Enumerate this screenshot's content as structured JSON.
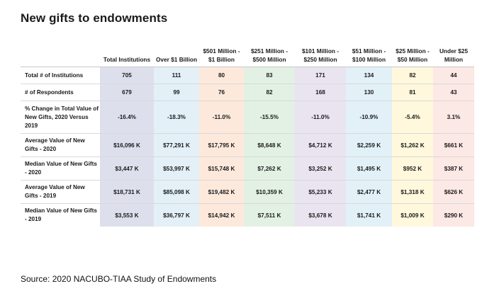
{
  "title": "New gifts to endowments",
  "source": "Source: 2020 NACUBO-TIAA Study of Endowments",
  "colors": {
    "col_total": "#dde0ec",
    "col_over1b": "#e3f0f7",
    "col_501": "#fde9dc",
    "col_251": "#e2f1e4",
    "col_101": "#eae4f0",
    "col_51": "#e2f1f8",
    "col_25": "#fff8dc",
    "col_under25": "#fce8e4"
  },
  "chart_data": {
    "type": "table",
    "columns": [
      "Total Institutions",
      "Over $1 Billion",
      "$501 Million - $1 Billion",
      "$251 Million - $500 Million",
      "$101 Million - $250 Million",
      "$51 Million - $100 Million",
      "$25 Million - $50 Million",
      "Under $25 Million"
    ],
    "rows": [
      {
        "label": "Total # of Institutions",
        "values": [
          "705",
          "111",
          "80",
          "83",
          "171",
          "134",
          "82",
          "44"
        ]
      },
      {
        "label": "# of Respondents",
        "values": [
          "679",
          "99",
          "76",
          "82",
          "168",
          "130",
          "81",
          "43"
        ]
      },
      {
        "label": "% Change in Total Value of New Gifts, 2020 Versus 2019",
        "values": [
          "-16.4%",
          "-18.3%",
          "-11.0%",
          "-15.5%",
          "-11.0%",
          "-10.9%",
          "-5.4%",
          "3.1%"
        ]
      },
      {
        "label": "Average Value of New Gifts - 2020",
        "values": [
          "$16,096 K",
          "$77,291 K",
          "$17,795 K",
          "$8,648 K",
          "$4,712 K",
          "$2,259 K",
          "$1,262 K",
          "$661 K"
        ]
      },
      {
        "label": "Median Value of New Gifts - 2020",
        "values": [
          "$3,447 K",
          "$53,997 K",
          "$15,748 K",
          "$7,262 K",
          "$3,252 K",
          "$1,495 K",
          "$952 K",
          "$387 K"
        ]
      },
      {
        "label": "Average Value of New Gifts - 2019",
        "values": [
          "$18,731 K",
          "$85,098 K",
          "$19,482 K",
          "$10,359 K",
          "$5,233 K",
          "$2,477 K",
          "$1,318 K",
          "$626 K"
        ]
      },
      {
        "label": "Median Value of New Gifts - 2019",
        "values": [
          "$3,553 K",
          "$36,797 K",
          "$14,942 K",
          "$7,511 K",
          "$3,678 K",
          "$1,741 K",
          "$1,009 K",
          "$290 K"
        ]
      }
    ]
  }
}
